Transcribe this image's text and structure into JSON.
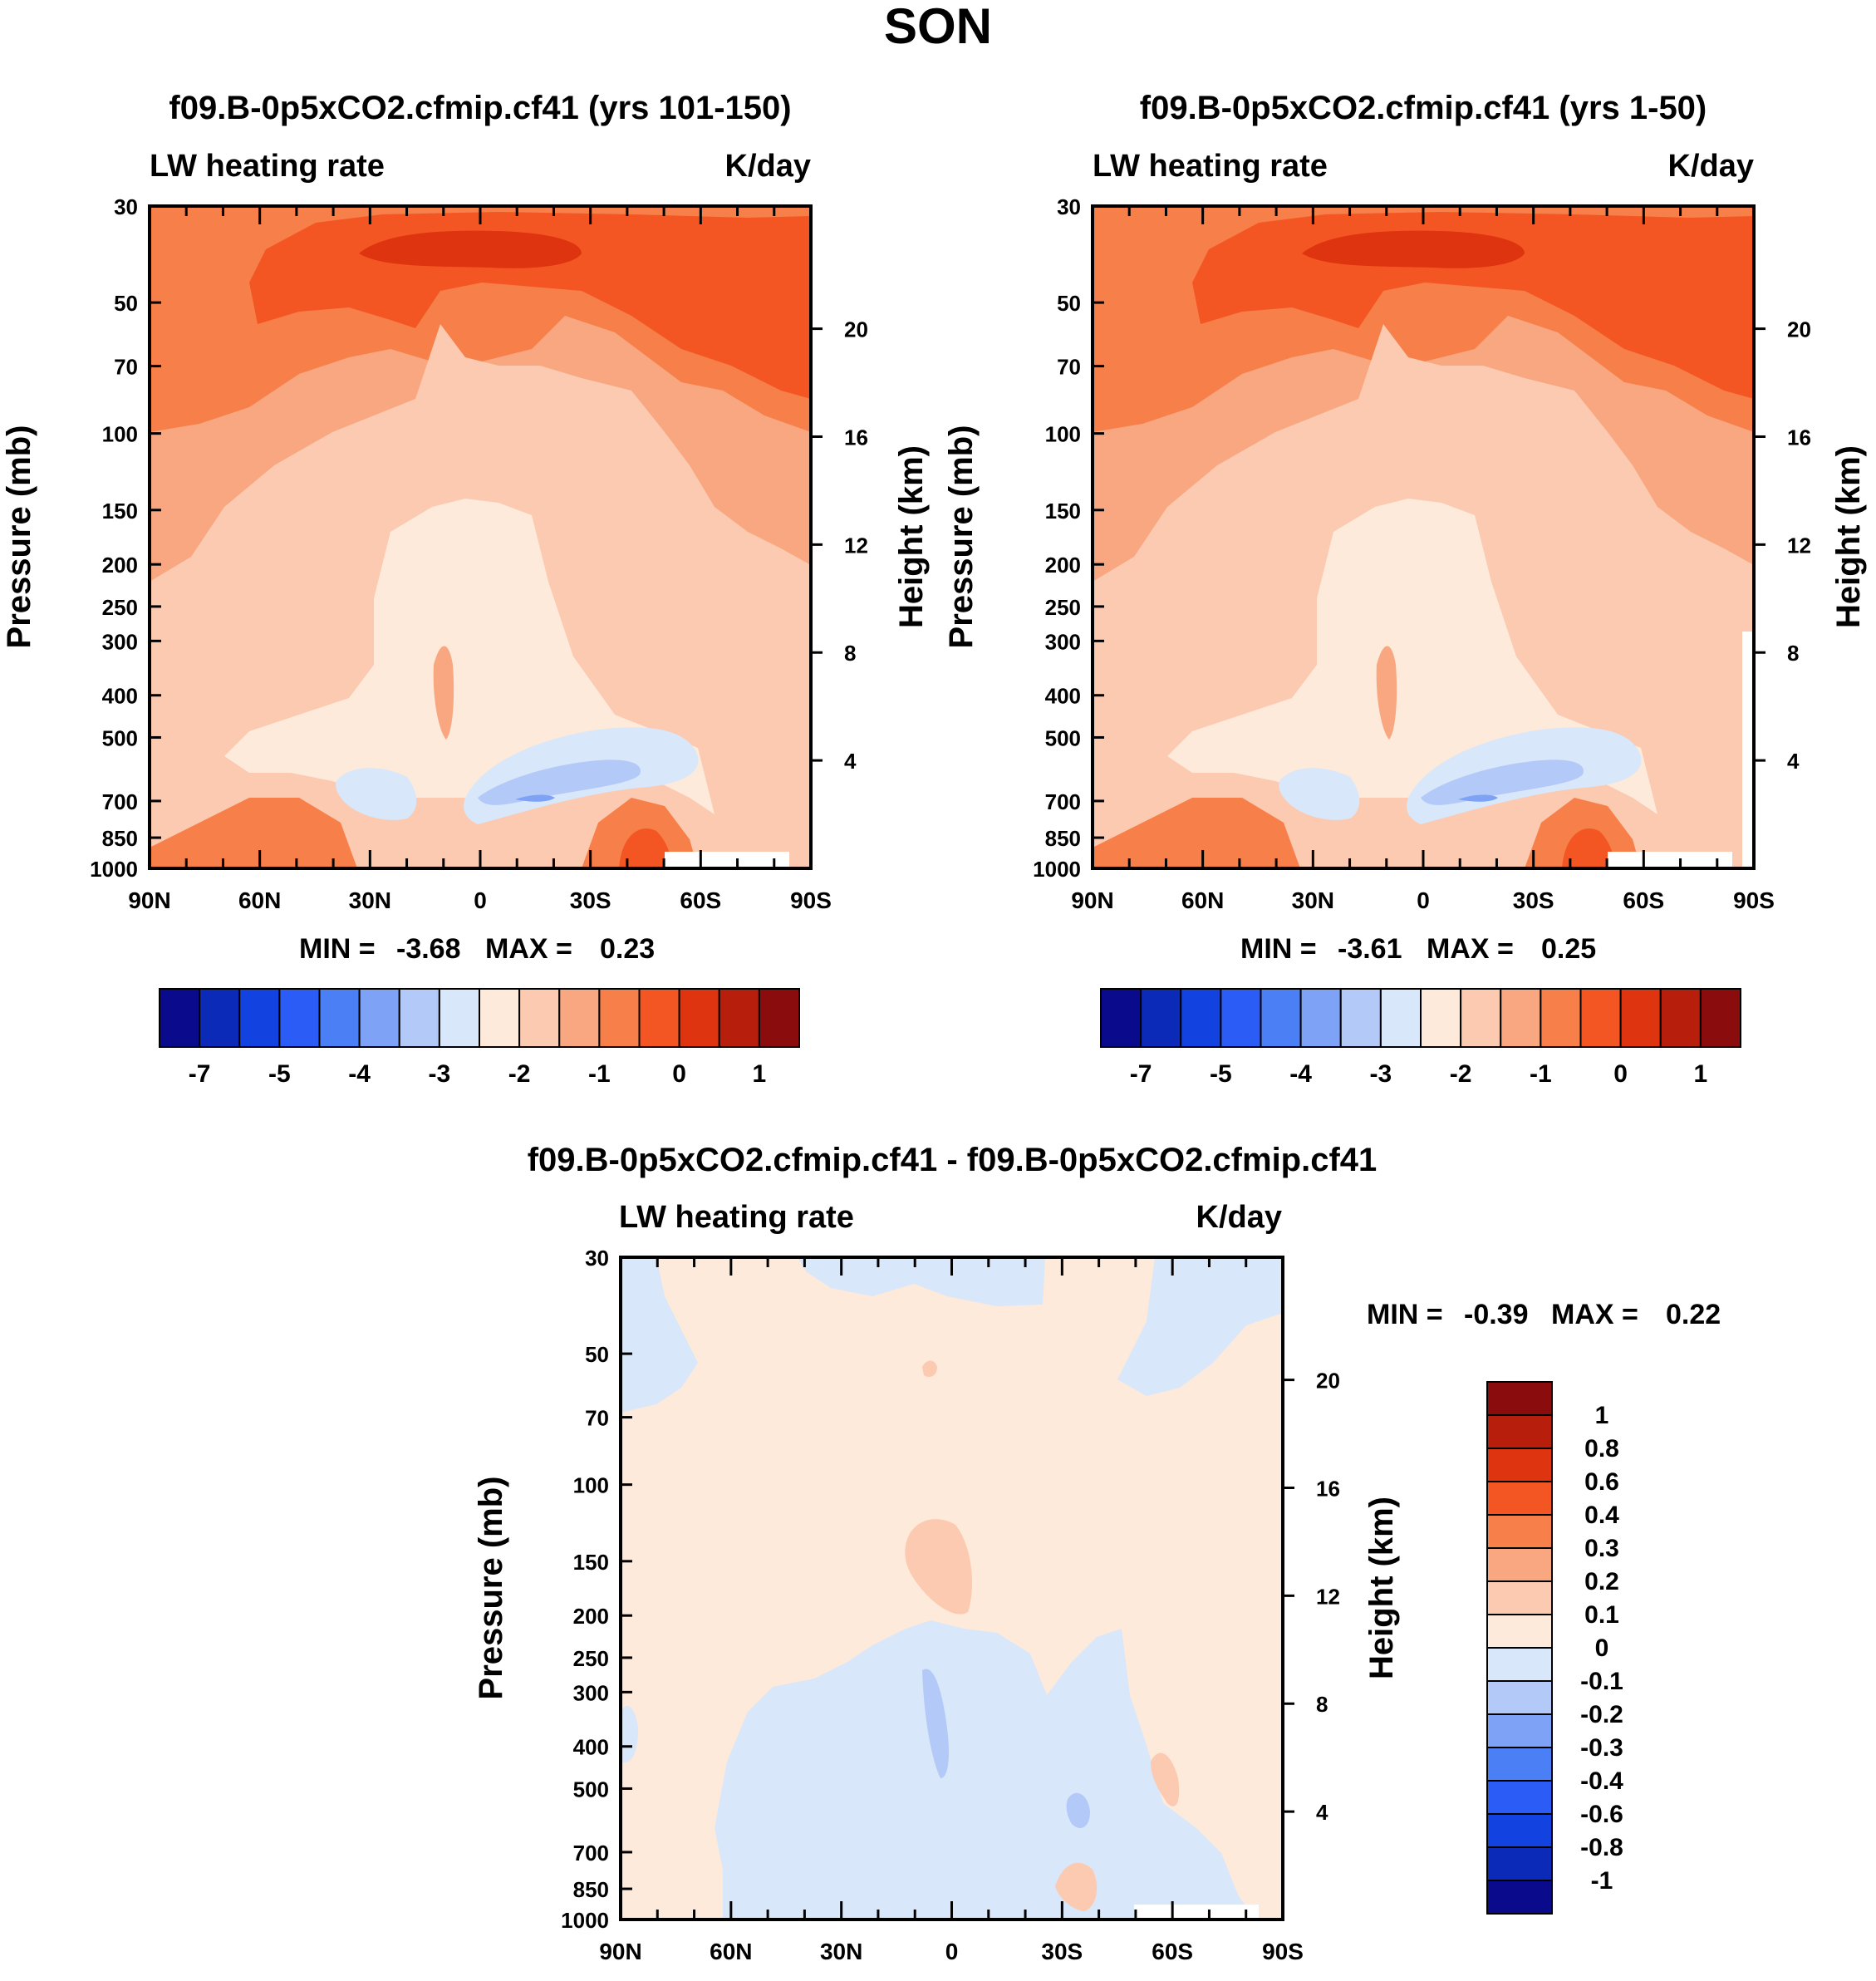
{
  "figure_title": "SON",
  "colors": {
    "blue_ramp": [
      "#0a0a8c",
      "#0b2ab8",
      "#1242e0",
      "#2b5cf5",
      "#4a7ff5",
      "#7ea2f5",
      "#b3c9f7",
      "#d8e7fa"
    ],
    "red_ramp": [
      "#fdeadb",
      "#fbcab0",
      "#f8a781",
      "#f77f4a",
      "#f45623",
      "#de340f",
      "#b81e0c",
      "#8b0c0c"
    ],
    "background_white": "#ffffff"
  },
  "chart_data": [
    {
      "type": "contour",
      "title": "f09.B-0p5xCO2.cfmip.cf41 (yrs 101-150)",
      "left_label": "LW heating rate",
      "right_label": "K/day",
      "ylabel": "Pressure (mb)",
      "ylabel_right": "Height (km)",
      "x_ticks": [
        "90N",
        "60N",
        "30N",
        "0",
        "30S",
        "60S",
        "90S"
      ],
      "x_range": [
        90,
        -90
      ],
      "y_ticks": [
        "30",
        "50",
        "70",
        "100",
        "150",
        "200",
        "250",
        "300",
        "400",
        "500",
        "700",
        "850",
        "1000"
      ],
      "y_tick_values": [
        30,
        50,
        70,
        100,
        150,
        200,
        250,
        300,
        400,
        500,
        700,
        850,
        1000
      ],
      "y_range_mb": [
        30,
        1000
      ],
      "height_ticks": [
        "20",
        "16",
        "12",
        "8",
        "4"
      ],
      "height_tick_values": [
        20,
        16,
        12,
        8,
        4
      ],
      "min_label": "MIN =",
      "min_value": "-3.68",
      "max_label": "MAX =",
      "max_value": "0.23",
      "colorbar": {
        "orientation": "horizontal",
        "labels": [
          "-7",
          "-5",
          "-4",
          "-3",
          "-2",
          "-1",
          "0",
          "1"
        ]
      }
    },
    {
      "type": "contour",
      "title": "f09.B-0p5xCO2.cfmip.cf41 (yrs 1-50)",
      "left_label": "LW heating rate",
      "right_label": "K/day",
      "ylabel": "Pressure (mb)",
      "ylabel_right": "Height (km)",
      "x_ticks": [
        "90N",
        "60N",
        "30N",
        "0",
        "30S",
        "60S",
        "90S"
      ],
      "x_range": [
        90,
        -90
      ],
      "y_ticks": [
        "30",
        "50",
        "70",
        "100",
        "150",
        "200",
        "250",
        "300",
        "400",
        "500",
        "700",
        "850",
        "1000"
      ],
      "y_tick_values": [
        30,
        50,
        70,
        100,
        150,
        200,
        250,
        300,
        400,
        500,
        700,
        850,
        1000
      ],
      "y_range_mb": [
        30,
        1000
      ],
      "height_ticks": [
        "20",
        "16",
        "12",
        "8",
        "4"
      ],
      "height_tick_values": [
        20,
        16,
        12,
        8,
        4
      ],
      "min_label": "MIN =",
      "min_value": "-3.61",
      "max_label": "MAX =",
      "max_value": "0.25",
      "colorbar": {
        "orientation": "horizontal",
        "labels": [
          "-7",
          "-5",
          "-4",
          "-3",
          "-2",
          "-1",
          "0",
          "1"
        ]
      }
    },
    {
      "type": "contour",
      "title": "f09.B-0p5xCO2.cfmip.cf41 - f09.B-0p5xCO2.cfmip.cf41",
      "left_label": "LW heating rate",
      "right_label": "K/day",
      "ylabel": "Pressure (mb)",
      "ylabel_right": "Height (km)",
      "x_ticks": [
        "90N",
        "60N",
        "30N",
        "0",
        "30S",
        "60S",
        "90S"
      ],
      "x_range": [
        90,
        -90
      ],
      "y_ticks": [
        "30",
        "50",
        "70",
        "100",
        "150",
        "200",
        "250",
        "300",
        "400",
        "500",
        "700",
        "850",
        "1000"
      ],
      "y_tick_values": [
        30,
        50,
        70,
        100,
        150,
        200,
        250,
        300,
        400,
        500,
        700,
        850,
        1000
      ],
      "y_range_mb": [
        30,
        1000
      ],
      "height_ticks": [
        "20",
        "16",
        "12",
        "8",
        "4"
      ],
      "height_tick_values": [
        20,
        16,
        12,
        8,
        4
      ],
      "min_label": "MIN =",
      "min_value": "-0.39",
      "max_label": "MAX =",
      "max_value": "0.22",
      "colorbar": {
        "orientation": "vertical",
        "labels": [
          "1",
          "0.8",
          "0.6",
          "0.4",
          "0.3",
          "0.2",
          "0.1",
          "0",
          "-0.1",
          "-0.2",
          "-0.3",
          "-0.4",
          "-0.6",
          "-0.8",
          "-1"
        ]
      }
    }
  ]
}
